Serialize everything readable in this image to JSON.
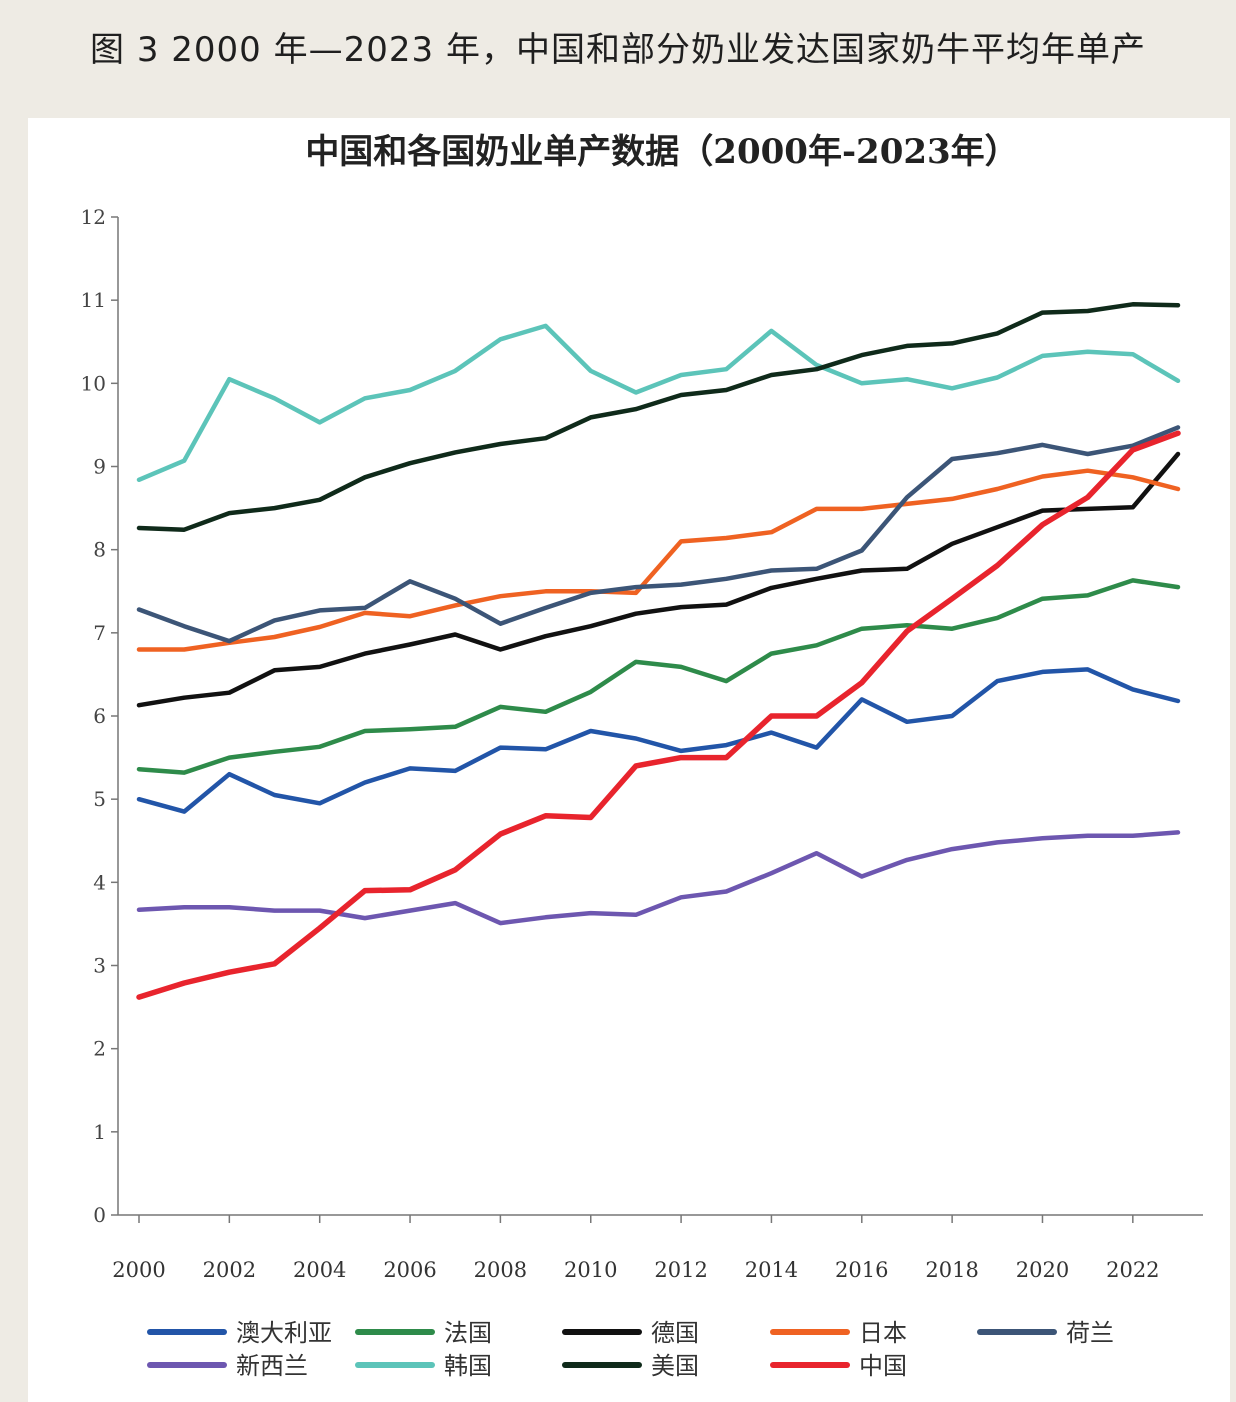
{
  "caption": "图 3  2000 年—2023 年，中国和部分奶业发达国家奶牛平均年单产",
  "chart_data": {
    "type": "line",
    "title": "中国和各国奶业单产数据（2000年-2023年）",
    "xlabel": "",
    "ylabel": "",
    "ylim": [
      0,
      12
    ],
    "yticks": [
      0,
      1,
      2,
      3,
      4,
      5,
      6,
      7,
      8,
      9,
      10,
      11,
      12
    ],
    "x": [
      2000,
      2001,
      2002,
      2003,
      2004,
      2005,
      2006,
      2007,
      2008,
      2009,
      2010,
      2011,
      2012,
      2013,
      2014,
      2015,
      2016,
      2017,
      2018,
      2019,
      2020,
      2021,
      2022,
      2023
    ],
    "xticks": [
      2000,
      2002,
      2004,
      2006,
      2008,
      2010,
      2012,
      2014,
      2016,
      2018,
      2020,
      2022
    ],
    "grid": false,
    "legend_position": "bottom",
    "series": [
      {
        "name": "澳大利亚",
        "color": "#2255a8",
        "values": [
          5.0,
          4.85,
          5.3,
          5.05,
          4.95,
          5.2,
          5.37,
          5.34,
          5.62,
          5.6,
          5.82,
          5.73,
          5.58,
          5.65,
          5.8,
          5.62,
          6.2,
          5.93,
          6.0,
          6.42,
          6.53,
          6.56,
          6.32,
          6.18
        ]
      },
      {
        "name": "法国",
        "color": "#2e8b4a",
        "values": [
          5.36,
          5.32,
          5.5,
          5.57,
          5.63,
          5.82,
          5.84,
          5.87,
          6.11,
          6.05,
          6.29,
          6.65,
          6.59,
          6.42,
          6.75,
          6.85,
          7.05,
          7.09,
          7.05,
          7.18,
          7.41,
          7.45,
          7.63,
          7.55
        ]
      },
      {
        "name": "德国",
        "color": "#111111",
        "values": [
          6.13,
          6.22,
          6.28,
          6.55,
          6.59,
          6.75,
          6.86,
          6.98,
          6.8,
          6.96,
          7.08,
          7.23,
          7.31,
          7.34,
          7.54,
          7.65,
          7.75,
          7.77,
          8.07,
          8.27,
          8.47,
          8.49,
          8.51,
          9.15
        ]
      },
      {
        "name": "日本",
        "color": "#ef6222",
        "values": [
          6.8,
          6.8,
          6.88,
          6.95,
          7.07,
          7.24,
          7.2,
          7.33,
          7.44,
          7.5,
          7.5,
          7.48,
          8.1,
          8.14,
          8.21,
          8.49,
          8.49,
          8.55,
          8.61,
          8.73,
          8.88,
          8.95,
          8.87,
          8.73
        ]
      },
      {
        "name": "荷兰",
        "color": "#3c5577",
        "values": [
          7.28,
          7.08,
          6.9,
          7.15,
          7.27,
          7.3,
          7.62,
          7.41,
          7.11,
          7.3,
          7.48,
          7.55,
          7.58,
          7.65,
          7.75,
          7.77,
          7.99,
          8.63,
          9.09,
          9.16,
          9.26,
          9.15,
          9.25,
          9.47
        ]
      },
      {
        "name": "新西兰",
        "color": "#6d57b0",
        "values": [
          3.67,
          3.7,
          3.7,
          3.66,
          3.66,
          3.57,
          3.66,
          3.75,
          3.51,
          3.58,
          3.63,
          3.61,
          3.82,
          3.89,
          4.11,
          4.35,
          4.07,
          4.27,
          4.4,
          4.48,
          4.53,
          4.56,
          4.56,
          4.6
        ]
      },
      {
        "name": "韩国",
        "color": "#5cc4b9",
        "values": [
          8.84,
          9.07,
          10.05,
          9.82,
          9.53,
          9.82,
          9.92,
          10.15,
          10.53,
          10.69,
          10.15,
          9.89,
          10.1,
          10.17,
          10.63,
          10.22,
          10.0,
          10.05,
          9.94,
          10.07,
          10.33,
          10.38,
          10.35,
          10.03
        ]
      },
      {
        "name": "美国",
        "color": "#0f2a1a",
        "values": [
          8.26,
          8.24,
          8.44,
          8.5,
          8.6,
          8.87,
          9.04,
          9.17,
          9.27,
          9.34,
          9.59,
          9.69,
          9.86,
          9.92,
          10.1,
          10.17,
          10.34,
          10.45,
          10.48,
          10.6,
          10.85,
          10.87,
          10.95,
          10.94
        ]
      },
      {
        "name": "中国",
        "color": "#e8242d",
        "values": [
          2.62,
          2.79,
          2.92,
          3.02,
          3.45,
          3.9,
          3.91,
          4.15,
          4.58,
          4.8,
          4.78,
          5.4,
          5.5,
          5.5,
          6.0,
          6.0,
          6.4,
          7.02,
          7.41,
          7.81,
          8.3,
          8.63,
          9.2,
          9.4
        ]
      }
    ]
  }
}
